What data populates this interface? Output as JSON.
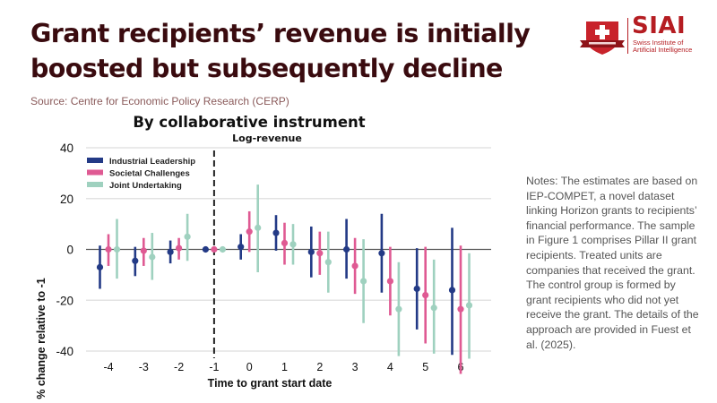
{
  "header": {
    "title": "Grant recipients’ revenue is initially boosted but subsequently decline",
    "source": "Source: Centre for Economic Policy Research (CERP)"
  },
  "logo": {
    "name": "SIAI",
    "subtitle_line1": "Swiss Institute of",
    "subtitle_line2": "Artificial Intelligence",
    "brand_color": "#b51d22"
  },
  "notes": "Notes: The estimates are based on IEP-COMPET, a novel dataset linking Horizon grants to recipients’ financial performance. The sample in Figure 1 comprises Pillar II grant recipients. Treated units are companies that received the grant. The control group is formed by grant recipients who did not yet receive the grant. The details of the approach are provided in Fuest et al. (2025).",
  "chart_data": {
    "type": "scatter",
    "subtype": "event-study point estimates with confidence intervals",
    "title": "By collaborative instrument",
    "subtitle": "Log-revenue",
    "xlabel": "Time to grant start date",
    "ylabel": "% change relative to -1",
    "x": [
      -4,
      -3,
      -2,
      -1,
      0,
      1,
      2,
      3,
      4,
      5,
      6
    ],
    "ylim": [
      -40,
      40
    ],
    "yticks": [
      -40,
      -20,
      0,
      20,
      40
    ],
    "reference_line": {
      "x": -1,
      "style": "dashed"
    },
    "grid": true,
    "legend_position": "top-left",
    "series": [
      {
        "name": "Industrial Leadership",
        "color": "#233a86",
        "values": [
          -7,
          -4.5,
          -1,
          0,
          1,
          6.5,
          -1,
          0,
          -1.5,
          -15.5,
          -16
        ],
        "ci_low": [
          -15.5,
          -10.5,
          -5.5,
          0,
          -4,
          -0.5,
          -11,
          -11.5,
          -17,
          -31.5,
          -41.5
        ],
        "ci_high": [
          1.5,
          1,
          3.5,
          0,
          6,
          13.5,
          9,
          12,
          14,
          0.5,
          8.5
        ]
      },
      {
        "name": "Societal Challenges",
        "color": "#df5a93",
        "values": [
          0,
          -0.5,
          0.5,
          0,
          7,
          2.5,
          -1.5,
          -6.5,
          -12.5,
          -18,
          -23.5
        ],
        "ci_low": [
          -6.5,
          -6.5,
          -4,
          0,
          -1,
          -6,
          -10,
          -17.5,
          -26,
          -37,
          -49
        ],
        "ci_high": [
          6,
          4.5,
          4.5,
          0,
          15,
          10.5,
          7,
          4.5,
          1,
          1,
          1.5
        ]
      },
      {
        "name": "Joint Undertaking",
        "color": "#9fd1bf",
        "values": [
          0,
          -3,
          5,
          0,
          8.5,
          2,
          -5,
          -12.5,
          -23.5,
          -23,
          -22
        ],
        "ci_low": [
          -11.5,
          -12,
          -4.5,
          0,
          -9,
          -6,
          -17,
          -29,
          -42,
          -41,
          -43
        ],
        "ci_high": [
          12,
          6.5,
          14,
          0,
          25.5,
          10,
          7,
          4,
          -5,
          -4,
          -1.5
        ]
      }
    ]
  }
}
